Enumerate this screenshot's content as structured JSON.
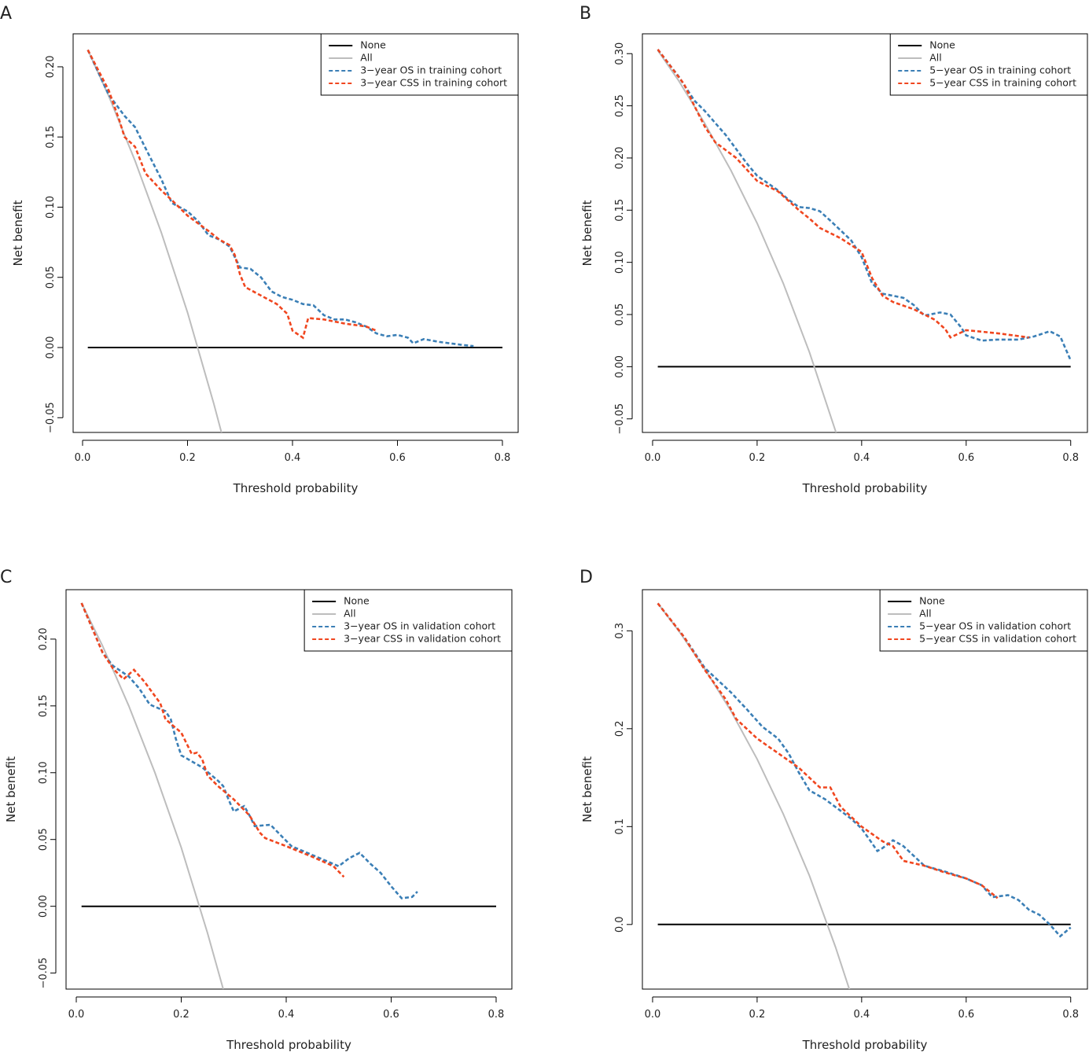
{
  "chart_data": [
    {
      "type": "line",
      "panel": "A",
      "xlabel": "Threshold probability",
      "ylabel": "Net benefit",
      "xlim": [
        -0.018,
        0.83
      ],
      "ylim": [
        -0.0605,
        0.2235
      ],
      "xticks": [
        {
          "value": 0,
          "label": "0.0"
        },
        0.2,
        0.4,
        0.6,
        0.8
      ],
      "yticks": [
        {
          "value": -0.05,
          "label": "−0.05"
        },
        {
          "value": 0,
          "label": "0.00"
        },
        0.05,
        {
          "value": 0.1,
          "label": "0.10"
        },
        0.15,
        {
          "value": 0.2,
          "label": "0.20"
        }
      ],
      "legend": "topright",
      "series": [
        {
          "name": "None",
          "color": "#000000",
          "style": "solid",
          "x": [
            0.01,
            0.8
          ],
          "values": [
            0,
            0
          ]
        },
        {
          "name": "All",
          "color": "#bdbdbd",
          "style": "solid",
          "x": [
            0.01,
            0.05,
            0.1,
            0.15,
            0.2,
            0.25,
            0.27
          ],
          "values": [
            0.212,
            0.179,
            0.133,
            0.082,
            0.025,
            -0.04,
            -0.068
          ]
        },
        {
          "name": "3−year OS in training cohort",
          "color": "#3b7fb6",
          "style": "dashed",
          "x": [
            0.01,
            0.05,
            0.08,
            0.1,
            0.12,
            0.15,
            0.17,
            0.2,
            0.22,
            0.24,
            0.26,
            0.28,
            0.3,
            0.32,
            0.34,
            0.36,
            0.38,
            0.4,
            0.42,
            0.44,
            0.46,
            0.48,
            0.5,
            0.52,
            0.54,
            0.56,
            0.58,
            0.6,
            0.62,
            0.63,
            0.65,
            0.68,
            0.72,
            0.745
          ],
          "values": [
            0.212,
            0.18,
            0.165,
            0.157,
            0.142,
            0.12,
            0.103,
            0.097,
            0.09,
            0.08,
            0.077,
            0.072,
            0.057,
            0.056,
            0.05,
            0.04,
            0.036,
            0.034,
            0.031,
            0.03,
            0.023,
            0.02,
            0.02,
            0.018,
            0.015,
            0.01,
            0.008,
            0.009,
            0.007,
            0.003,
            0.006,
            0.004,
            0.002,
            0.001
          ]
        },
        {
          "name": "3−year CSS in training cohort",
          "color": "#f0461f",
          "style": "dashed",
          "x": [
            0.01,
            0.05,
            0.07,
            0.08,
            0.1,
            0.12,
            0.15,
            0.17,
            0.2,
            0.24,
            0.26,
            0.28,
            0.29,
            0.3,
            0.31,
            0.34,
            0.37,
            0.39,
            0.4,
            0.42,
            0.43,
            0.46,
            0.5,
            0.54,
            0.56
          ],
          "values": [
            0.212,
            0.183,
            0.162,
            0.15,
            0.143,
            0.124,
            0.112,
            0.105,
            0.094,
            0.083,
            0.077,
            0.073,
            0.066,
            0.052,
            0.043,
            0.037,
            0.031,
            0.024,
            0.012,
            0.007,
            0.021,
            0.02,
            0.017,
            0.015,
            0.012
          ]
        }
      ]
    },
    {
      "type": "line",
      "panel": "B",
      "xlabel": "Threshold probability",
      "ylabel": "Net benefit",
      "xlim": [
        -0.0195,
        0.832
      ],
      "ylim": [
        -0.063,
        0.319
      ],
      "xticks": [
        {
          "value": 0,
          "label": "0.0"
        },
        0.2,
        0.4,
        0.6,
        0.8
      ],
      "yticks": [
        {
          "value": -0.05,
          "label": "−0.05"
        },
        {
          "value": 0,
          "label": "0.00"
        },
        0.05,
        {
          "value": 0.1,
          "label": "0.10"
        },
        0.15,
        {
          "value": 0.2,
          "label": "0.20"
        },
        0.25,
        {
          "value": 0.3,
          "label": "0.30"
        }
      ],
      "legend": "topright",
      "series": [
        {
          "name": "None",
          "color": "#000000",
          "style": "solid",
          "x": [
            0.01,
            0.8
          ],
          "values": [
            0,
            0
          ]
        },
        {
          "name": "All",
          "color": "#bdbdbd",
          "style": "solid",
          "x": [
            0.01,
            0.05,
            0.1,
            0.15,
            0.2,
            0.25,
            0.3,
            0.35,
            0.36
          ],
          "values": [
            0.303,
            0.274,
            0.233,
            0.188,
            0.1375,
            0.08,
            0.014,
            -0.0615,
            -0.078
          ]
        },
        {
          "name": "5−year OS in training cohort",
          "color": "#3b7fb6",
          "style": "dashed",
          "x": [
            0.01,
            0.05,
            0.08,
            0.1,
            0.14,
            0.18,
            0.2,
            0.24,
            0.26,
            0.28,
            0.3,
            0.32,
            0.34,
            0.38,
            0.4,
            0.42,
            0.44,
            0.48,
            0.5,
            0.52,
            0.55,
            0.57,
            0.59,
            0.6,
            0.63,
            0.66,
            0.7,
            0.73,
            0.76,
            0.78,
            0.8
          ],
          "values": [
            0.304,
            0.278,
            0.255,
            0.245,
            0.222,
            0.195,
            0.183,
            0.169,
            0.16,
            0.153,
            0.152,
            0.149,
            0.14,
            0.121,
            0.105,
            0.08,
            0.07,
            0.066,
            0.059,
            0.049,
            0.052,
            0.05,
            0.038,
            0.03,
            0.025,
            0.026,
            0.026,
            0.029,
            0.034,
            0.029,
            0.006
          ]
        },
        {
          "name": "5−year CSS in training cohort",
          "color": "#f0461f",
          "style": "dashed",
          "x": [
            0.01,
            0.06,
            0.08,
            0.1,
            0.12,
            0.16,
            0.2,
            0.24,
            0.28,
            0.3,
            0.32,
            0.36,
            0.4,
            0.42,
            0.44,
            0.46,
            0.5,
            0.54,
            0.56,
            0.57,
            0.6,
            0.66,
            0.72
          ],
          "values": [
            0.304,
            0.271,
            0.25,
            0.23,
            0.215,
            0.2,
            0.178,
            0.168,
            0.15,
            0.142,
            0.133,
            0.123,
            0.11,
            0.085,
            0.068,
            0.062,
            0.055,
            0.045,
            0.036,
            0.028,
            0.035,
            0.032,
            0.028
          ]
        }
      ]
    },
    {
      "type": "line",
      "panel": "C",
      "xlabel": "Threshold probability",
      "ylabel": "Net benefit",
      "xlim": [
        -0.0195,
        0.83
      ],
      "ylim": [
        -0.062,
        0.237
      ],
      "xticks": [
        {
          "value": 0,
          "label": "0.0"
        },
        0.2,
        0.4,
        0.6,
        0.8
      ],
      "yticks": [
        {
          "value": -0.05,
          "label": "−0.05"
        },
        {
          "value": 0,
          "label": "0.00"
        },
        0.05,
        {
          "value": 0.1,
          "label": "0.10"
        },
        0.15,
        {
          "value": 0.2,
          "label": "0.20"
        }
      ],
      "legend": "topright",
      "series": [
        {
          "name": "None",
          "color": "#000000",
          "style": "solid",
          "x": [
            0.01,
            0.8
          ],
          "values": [
            0,
            0
          ]
        },
        {
          "name": "All",
          "color": "#bdbdbd",
          "style": "solid",
          "x": [
            0.01,
            0.05,
            0.1,
            0.15,
            0.2,
            0.25,
            0.28
          ],
          "values": [
            0.227,
            0.195,
            0.15,
            0.0999,
            0.044,
            -0.02,
            -0.062
          ]
        },
        {
          "name": "3−year OS in validation cohort",
          "color": "#3b7fb6",
          "style": "dashed",
          "x": [
            0.01,
            0.05,
            0.07,
            0.1,
            0.12,
            0.14,
            0.17,
            0.18,
            0.19,
            0.2,
            0.24,
            0.27,
            0.28,
            0.29,
            0.3,
            0.32,
            0.33,
            0.34,
            0.37,
            0.39,
            0.41,
            0.44,
            0.47,
            0.5,
            0.52,
            0.54,
            0.56,
            0.58,
            0.6,
            0.62,
            0.64,
            0.65
          ],
          "values": [
            0.227,
            0.19,
            0.18,
            0.172,
            0.163,
            0.151,
            0.146,
            0.14,
            0.125,
            0.113,
            0.104,
            0.094,
            0.09,
            0.08,
            0.071,
            0.075,
            0.068,
            0.06,
            0.061,
            0.053,
            0.045,
            0.04,
            0.035,
            0.03,
            0.036,
            0.04,
            0.032,
            0.025,
            0.015,
            0.006,
            0.007,
            0.011
          ]
        },
        {
          "name": "3−year CSS in validation cohort",
          "color": "#f0461f",
          "style": "dashed",
          "x": [
            0.01,
            0.05,
            0.07,
            0.09,
            0.11,
            0.13,
            0.16,
            0.17,
            0.2,
            0.21,
            0.22,
            0.23,
            0.24,
            0.25,
            0.27,
            0.3,
            0.33,
            0.35,
            0.36,
            0.4,
            0.45,
            0.49,
            0.51
          ],
          "values": [
            0.227,
            0.19,
            0.178,
            0.17,
            0.177,
            0.168,
            0.152,
            0.14,
            0.13,
            0.122,
            0.114,
            0.115,
            0.11,
            0.098,
            0.09,
            0.08,
            0.068,
            0.055,
            0.051,
            0.045,
            0.037,
            0.03,
            0.022
          ]
        }
      ]
    },
    {
      "type": "line",
      "panel": "D",
      "xlabel": "Threshold probability",
      "ylabel": "Net benefit",
      "xlim": [
        -0.0195,
        0.832
      ],
      "ylim": [
        -0.066,
        0.342
      ],
      "xticks": [
        {
          "value": 0,
          "label": "0.0"
        },
        0.2,
        0.4,
        0.6,
        0.8
      ],
      "yticks": [
        {
          "value": 0,
          "label": "0.0"
        },
        0.1,
        0.2,
        0.3
      ],
      "legend": "topright",
      "series": [
        {
          "name": "None",
          "color": "#000000",
          "style": "solid",
          "x": [
            0.01,
            0.8
          ],
          "values": [
            0,
            0
          ]
        },
        {
          "name": "All",
          "color": "#bdbdbd",
          "style": "solid",
          "x": [
            0.01,
            0.05,
            0.1,
            0.15,
            0.2,
            0.25,
            0.3,
            0.35,
            0.38
          ],
          "values": [
            0.328,
            0.3,
            0.261,
            0.218,
            0.169,
            0.113,
            0.05,
            -0.023,
            -0.072
          ]
        },
        {
          "name": "5−year OS in validation cohort",
          "color": "#3b7fb6",
          "style": "dashed",
          "x": [
            0.01,
            0.06,
            0.1,
            0.13,
            0.15,
            0.18,
            0.21,
            0.24,
            0.26,
            0.28,
            0.3,
            0.33,
            0.35,
            0.38,
            0.4,
            0.42,
            0.43,
            0.44,
            0.46,
            0.48,
            0.5,
            0.52,
            0.56,
            0.6,
            0.63,
            0.65,
            0.68,
            0.7,
            0.72,
            0.74,
            0.76,
            0.78,
            0.8
          ],
          "values": [
            0.328,
            0.294,
            0.262,
            0.247,
            0.237,
            0.22,
            0.202,
            0.19,
            0.175,
            0.155,
            0.137,
            0.128,
            0.12,
            0.108,
            0.098,
            0.083,
            0.075,
            0.078,
            0.086,
            0.08,
            0.07,
            0.06,
            0.054,
            0.047,
            0.04,
            0.028,
            0.03,
            0.025,
            0.015,
            0.01,
            0.0,
            -0.012,
            -0.003
          ]
        },
        {
          "name": "5−year CSS in validation cohort",
          "color": "#f0461f",
          "style": "dashed",
          "x": [
            0.01,
            0.06,
            0.1,
            0.14,
            0.16,
            0.2,
            0.24,
            0.28,
            0.3,
            0.32,
            0.34,
            0.36,
            0.4,
            0.44,
            0.46,
            0.48,
            0.52,
            0.56,
            0.6,
            0.63,
            0.66
          ],
          "values": [
            0.328,
            0.294,
            0.26,
            0.23,
            0.21,
            0.19,
            0.175,
            0.16,
            0.15,
            0.14,
            0.14,
            0.12,
            0.1,
            0.085,
            0.08,
            0.065,
            0.06,
            0.053,
            0.047,
            0.04,
            0.027
          ]
        }
      ]
    }
  ]
}
